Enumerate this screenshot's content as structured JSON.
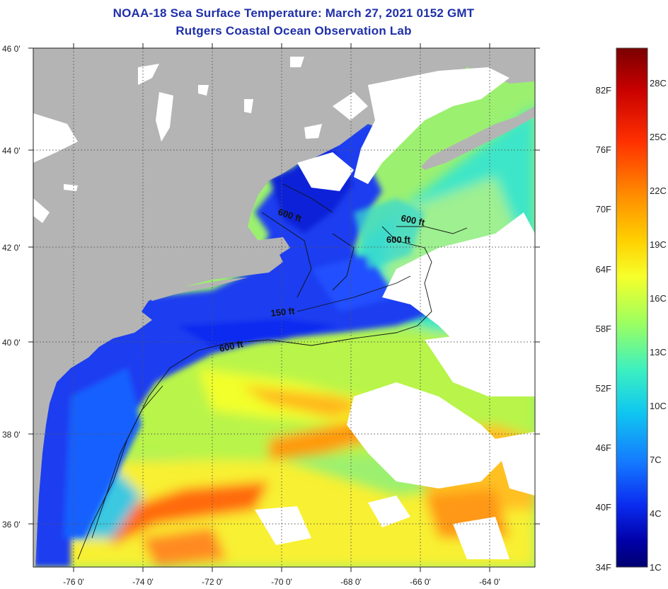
{
  "title": {
    "line1": "NOAA-18 Sea Surface Temperature:  March 27, 2021 0152 GMT",
    "line2": "Rutgers Coastal Ocean Observation Lab"
  },
  "axes": {
    "latitude_labels": [
      "46 0'",
      "44 0'",
      "42 0'",
      "40 0'",
      "38 0'",
      "36 0'"
    ],
    "longitude_labels": [
      "-76 0'",
      "-74 0'",
      "-72 0'",
      "-70 0'",
      "-68 0'",
      "-66 0'",
      "-64 0'"
    ]
  },
  "contour_labels": [
    "600 ft",
    "600 ft",
    "600 ft",
    "150 ft",
    "600 ft"
  ],
  "colorbar": {
    "fahrenheit_labels": [
      "82F",
      "76F",
      "70F",
      "64F",
      "58F",
      "52F",
      "46F",
      "40F",
      "34F"
    ],
    "celsius_labels": [
      "28C",
      "25C",
      "22C",
      "19C",
      "16C",
      "13C",
      "10C",
      "7C",
      "4C",
      "1C"
    ],
    "colors": [
      "#7a0000",
      "#c80000",
      "#ff3000",
      "#ff8a00",
      "#ffd000",
      "#f6ff2a",
      "#9cff60",
      "#3cf0c0",
      "#10c8f0",
      "#1478ff",
      "#0a2cf0",
      "#0000a8",
      "#000070"
    ]
  },
  "colors": {
    "land": "#b4b4b4",
    "cloud": "#ffffff",
    "title": "#1f2fa8"
  }
}
